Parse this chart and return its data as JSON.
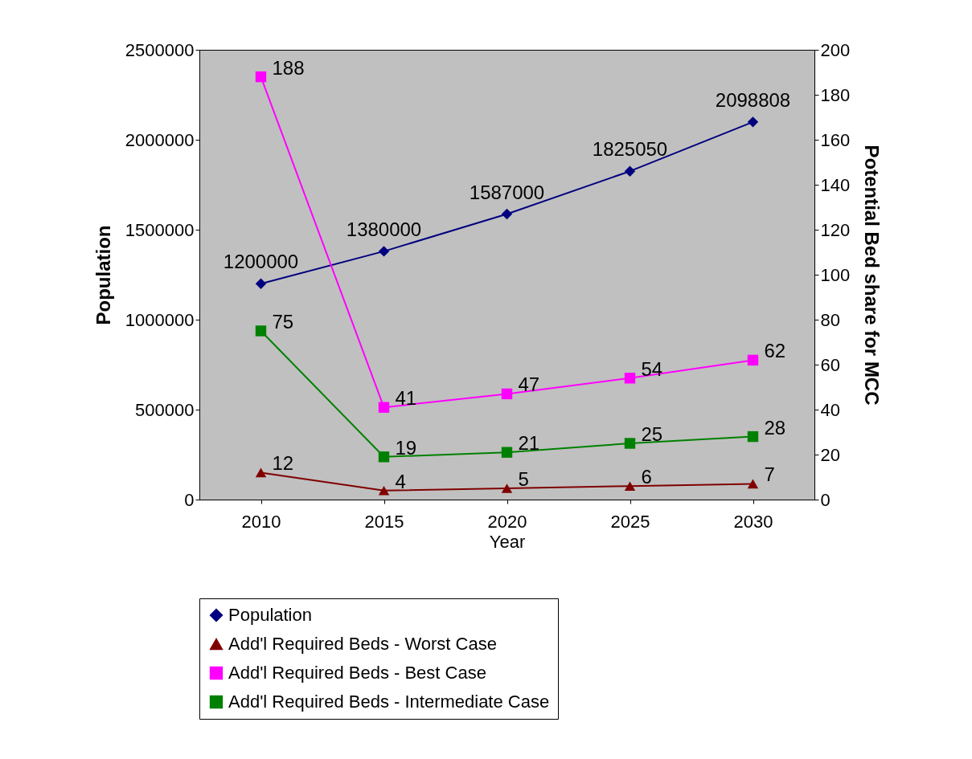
{
  "chart_data": {
    "type": "line",
    "xlabel": "Year",
    "ylabel": "Population",
    "y2label": "Potential Bed share for MCC",
    "categories": [
      "2010",
      "2015",
      "2020",
      "2025",
      "2030"
    ],
    "series": [
      {
        "name": "Population",
        "color": "#000080",
        "marker": "diamond",
        "values": [
          1200000,
          1380000,
          1587000,
          1825050,
          2098808
        ]
      },
      {
        "name": "Add'l Required Beds - Worst Case",
        "color": "#800000",
        "marker": "triangle",
        "axis": "y2",
        "values": [
          12,
          4,
          5,
          6,
          7
        ]
      },
      {
        "name": "Add'l Required Beds - Best Case",
        "color": "#ff00ff",
        "marker": "square",
        "axis": "y2",
        "values": [
          188,
          41,
          47,
          54,
          62
        ]
      },
      {
        "name": "Add'l Required Beds - Intermediate Case",
        "color": "#008000",
        "marker": "square",
        "axis": "y2",
        "values": [
          75,
          19,
          21,
          25,
          28
        ]
      }
    ],
    "ylim": [
      0,
      2500000
    ],
    "yticks": [
      0,
      500000,
      1000000,
      1500000,
      2000000,
      2500000
    ],
    "y2lim": [
      0,
      200
    ],
    "y2ticks": [
      0,
      20,
      40,
      60,
      80,
      100,
      120,
      140,
      160,
      180,
      200
    ],
    "data_labels": true,
    "legend": "bottom",
    "grid": false
  }
}
